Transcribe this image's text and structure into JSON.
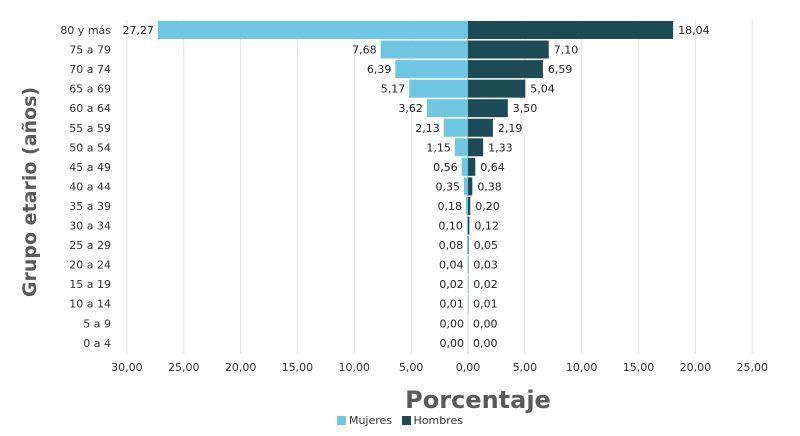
{
  "chart_data": {
    "type": "bar",
    "orientation": "horizontal",
    "layout": "population-pyramid",
    "categories": [
      "80 y más",
      "75 a 79",
      "70 a 74",
      "65 a 69",
      "60 a 64",
      "55 a 59",
      "50 a 54",
      "45 a 49",
      "40 a 44",
      "35 a 39",
      "30 a 34",
      "25 a 29",
      "20 a 24",
      "15 a 19",
      "10 a 14",
      "5 a 9",
      "0 a 4"
    ],
    "series": [
      {
        "name": "Mujeres",
        "color": "#6ec6e2",
        "side": "left",
        "values": [
          27.27,
          7.68,
          6.39,
          5.17,
          3.62,
          2.13,
          1.15,
          0.56,
          0.35,
          0.18,
          0.1,
          0.08,
          0.04,
          0.02,
          0.01,
          0.0,
          0.0
        ],
        "labels": [
          "27,27",
          "7,68",
          "6,39",
          "5,17",
          "3,62",
          "2,13",
          "1,15",
          "0,56",
          "0,35",
          "0,18",
          "0,10",
          "0,08",
          "0,04",
          "0,02",
          "0,01",
          "0,00",
          "0,00"
        ]
      },
      {
        "name": "Hombres",
        "color": "#1c4a55",
        "side": "right",
        "values": [
          18.04,
          7.1,
          6.59,
          5.04,
          3.5,
          2.19,
          1.33,
          0.64,
          0.38,
          0.2,
          0.12,
          0.05,
          0.03,
          0.02,
          0.01,
          0.0,
          0.0
        ],
        "labels": [
          "18,04",
          "7,10",
          "6,59",
          "5,04",
          "3,50",
          "2,19",
          "1,33",
          "0,64",
          "0,38",
          "0,20",
          "0,12",
          "0,05",
          "0,03",
          "0,02",
          "0,01",
          "0,00",
          "0,00"
        ]
      }
    ],
    "xlabel": "Porcentaje",
    "ylabel": "Grupo etario (años)",
    "xlim": [
      -30,
      25
    ],
    "x_ticks": [
      -30,
      -25,
      -20,
      -15,
      -10,
      -5,
      0,
      5,
      10,
      15,
      20,
      25
    ],
    "x_tick_labels": [
      "30,00",
      "25,00",
      "20,00",
      "15,00",
      "10,00",
      "5,00",
      "0,00",
      "5,00",
      "10,00",
      "15,00",
      "20,00",
      "25,00"
    ],
    "grid": true,
    "legend_position": "bottom-center"
  }
}
